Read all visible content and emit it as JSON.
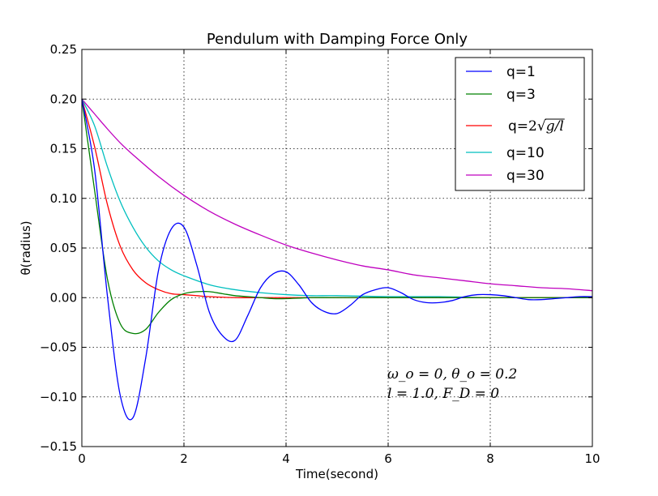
{
  "chart_data": {
    "type": "line",
    "title": "Pendulum with Damping Force Only",
    "xlabel": "Time(second)",
    "ylabel": "θ(radius)",
    "xlim": [
      0,
      10
    ],
    "ylim": [
      -0.15,
      0.25
    ],
    "xticks": [
      0,
      2,
      4,
      6,
      8,
      10
    ],
    "xtick_labels": [
      "0",
      "2",
      "4",
      "6",
      "8",
      "10"
    ],
    "yticks": [
      -0.15,
      -0.1,
      -0.05,
      0.0,
      0.05,
      0.1,
      0.15,
      0.2,
      0.25
    ],
    "ytick_labels": [
      "−0.15",
      "−0.10",
      "−0.05",
      "0.00",
      "0.05",
      "0.10",
      "0.15",
      "0.20",
      "0.25"
    ],
    "grid": true,
    "legend_position": "top-right",
    "annotations": [
      "ω_o = 0, θ_o = 0.2",
      "l = 1.0, F_D = 0"
    ],
    "series": [
      {
        "name": "q=1",
        "color": "#0000ff",
        "x": [
          0,
          0.25,
          0.5,
          0.75,
          1.0,
          1.25,
          1.5,
          1.75,
          2.0,
          2.25,
          2.5,
          2.75,
          3.0,
          3.25,
          3.5,
          3.75,
          4.0,
          4.25,
          4.5,
          4.75,
          5.0,
          5.25,
          5.5,
          5.75,
          6.0,
          6.25,
          6.5,
          6.75,
          7.0,
          7.25,
          7.5,
          7.75,
          8.0,
          8.25,
          8.5,
          8.75,
          9.0,
          9.25,
          9.5,
          9.75,
          10.0
        ],
        "y": [
          0.2,
          0.129,
          0.002,
          -0.098,
          -0.121,
          -0.061,
          0.027,
          0.069,
          0.071,
          0.033,
          -0.015,
          -0.038,
          -0.043,
          -0.018,
          0.01,
          0.024,
          0.026,
          0.013,
          -0.005,
          -0.014,
          -0.016,
          -0.008,
          0.003,
          0.008,
          0.01,
          0.005,
          -0.002,
          -0.005,
          -0.005,
          -0.003,
          0.001,
          0.003,
          0.003,
          0.002,
          0.0,
          -0.002,
          -0.002,
          -0.001,
          0.0,
          0.001,
          0.001
        ]
      },
      {
        "name": "q=3",
        "color": "#008000",
        "x": [
          0,
          0.25,
          0.5,
          0.75,
          1.0,
          1.25,
          1.5,
          1.75,
          2.0,
          2.25,
          2.5,
          2.75,
          3.0,
          3.25,
          3.5,
          3.75,
          4.0,
          4.5,
          5.0,
          6.0,
          8.0,
          10.0
        ],
        "y": [
          0.2,
          0.108,
          0.019,
          -0.026,
          -0.036,
          -0.032,
          -0.015,
          -0.002,
          0.004,
          0.006,
          0.006,
          0.004,
          0.002,
          0.001,
          0.0,
          -0.001,
          -0.001,
          0.0,
          0.0,
          0.0,
          0.0,
          0.0
        ]
      },
      {
        "name": "q=2√g/l",
        "legend_math": true,
        "color": "#ff0000",
        "x": [
          0,
          0.25,
          0.5,
          0.75,
          1.0,
          1.25,
          1.5,
          1.75,
          2.0,
          2.25,
          2.5,
          3.0,
          3.5,
          4.0,
          5.0,
          6.0,
          8.0,
          10.0
        ],
        "y": [
          0.2,
          0.152,
          0.094,
          0.052,
          0.028,
          0.015,
          0.008,
          0.004,
          0.003,
          0.002,
          0.001,
          0.0,
          0.0,
          0.0,
          0.0,
          0.0,
          0.0,
          0.0
        ]
      },
      {
        "name": "q=10",
        "color": "#00bfbf",
        "x": [
          0,
          0.25,
          0.5,
          0.75,
          1.0,
          1.25,
          1.5,
          1.75,
          2.0,
          2.5,
          3.0,
          3.5,
          4.0,
          4.5,
          5.0,
          6.0,
          7.0,
          8.0,
          9.0,
          10.0
        ],
        "y": [
          0.2,
          0.173,
          0.132,
          0.097,
          0.071,
          0.051,
          0.037,
          0.028,
          0.022,
          0.013,
          0.008,
          0.005,
          0.003,
          0.002,
          0.002,
          0.001,
          0.001,
          0.0,
          0.0,
          0.0
        ]
      },
      {
        "name": "q=30",
        "color": "#bf00bf",
        "x": [
          0,
          0.25,
          0.5,
          0.75,
          1.0,
          1.5,
          2.0,
          2.5,
          3.0,
          3.5,
          4.0,
          4.5,
          5.0,
          5.5,
          6.0,
          6.5,
          7.0,
          7.5,
          8.0,
          8.5,
          9.0,
          9.5,
          10.0
        ],
        "y": [
          0.2,
          0.185,
          0.17,
          0.156,
          0.144,
          0.122,
          0.103,
          0.087,
          0.074,
          0.063,
          0.053,
          0.045,
          0.038,
          0.032,
          0.028,
          0.023,
          0.02,
          0.017,
          0.014,
          0.012,
          0.01,
          0.009,
          0.007
        ]
      }
    ]
  }
}
